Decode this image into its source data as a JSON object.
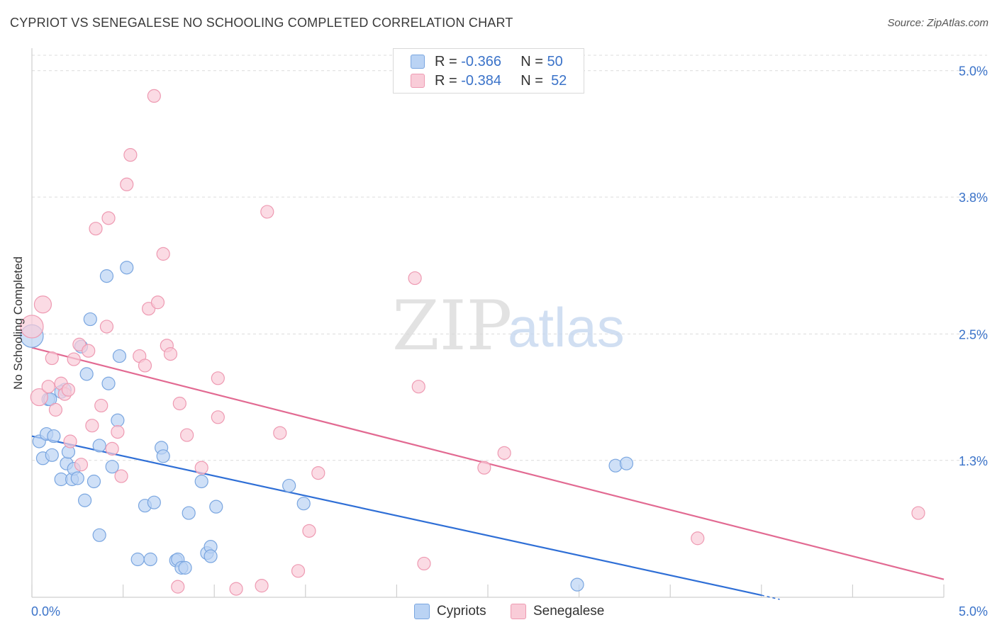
{
  "title": "CYPRIOT VS SENEGALESE NO SCHOOLING COMPLETED CORRELATION CHART",
  "source": "Source: ZipAtlas.com",
  "watermark": {
    "zip": "ZIP",
    "atlas": "atlas"
  },
  "legend": {
    "rows": [
      {
        "r_label": "R =",
        "r_value": "-0.366",
        "n_label": "N =",
        "n_value": "50"
      },
      {
        "r_label": "R =",
        "r_value": "-0.384",
        "n_label": "N =",
        "n_value": "52"
      }
    ]
  },
  "bottom_legend": [
    "Cypriots",
    "Senegalese"
  ],
  "chart_data": {
    "type": "scatter",
    "title": "CYPRIOT VS SENEGALESE NO SCHOOLING COMPLETED CORRELATION CHART",
    "xlabel": "",
    "ylabel": "No Schooling Completed",
    "xlim": [
      0,
      5
    ],
    "ylim": [
      0,
      5.2
    ],
    "x_tick_labels": [
      "0.0%",
      "5.0%"
    ],
    "y_ticks": [
      1.3,
      2.5,
      3.8,
      5.0
    ],
    "y_tick_labels": [
      "1.3%",
      "2.5%",
      "3.8%",
      "5.0%"
    ],
    "colors": {
      "blue": "#7aa6e0",
      "blue_fill": "#bad3f4",
      "blue_line": "#2f6fd6",
      "pink": "#ee9ab2",
      "pink_fill": "#f9ccd8",
      "pink_line": "#e26a92",
      "accent_text": "#3b73c9"
    },
    "series": [
      {
        "name": "Cypriots",
        "r": -0.366,
        "n": 50,
        "trend": {
          "x": [
            0,
            4.0
          ],
          "y": [
            1.53,
            0.02
          ],
          "dashed_to": [
            4.1,
            -0.02
          ]
        },
        "points": [
          [
            0.0,
            2.48,
            16
          ],
          [
            0.04,
            1.48,
            9
          ],
          [
            0.06,
            1.32,
            9
          ],
          [
            0.08,
            1.55,
            9
          ],
          [
            0.09,
            1.88,
            9
          ],
          [
            0.11,
            1.35,
            9
          ],
          [
            0.12,
            1.53,
            9
          ],
          [
            0.16,
            1.12,
            9
          ],
          [
            0.18,
            1.97,
            9
          ],
          [
            0.19,
            1.27,
            9
          ],
          [
            0.2,
            1.38,
            9
          ],
          [
            0.22,
            1.12,
            9
          ],
          [
            0.23,
            1.22,
            9
          ],
          [
            0.25,
            1.13,
            9
          ],
          [
            0.27,
            2.38,
            9
          ],
          [
            0.29,
            0.92,
            9
          ],
          [
            0.3,
            2.12,
            9
          ],
          [
            0.32,
            2.64,
            9
          ],
          [
            0.34,
            1.1,
            9
          ],
          [
            0.37,
            1.44,
            9
          ],
          [
            0.37,
            0.59,
            9
          ],
          [
            0.41,
            3.05,
            9
          ],
          [
            0.42,
            2.03,
            9
          ],
          [
            0.44,
            1.24,
            9
          ],
          [
            0.47,
            1.68,
            9
          ],
          [
            0.48,
            2.29,
            9
          ],
          [
            0.52,
            3.13,
            9
          ],
          [
            0.58,
            0.36,
            9
          ],
          [
            0.62,
            0.87,
            9
          ],
          [
            0.65,
            0.36,
            9
          ],
          [
            0.67,
            0.9,
            9
          ],
          [
            0.71,
            1.42,
            9
          ],
          [
            0.72,
            1.34,
            9
          ],
          [
            0.79,
            0.35,
            9
          ],
          [
            0.8,
            0.36,
            9
          ],
          [
            0.82,
            0.28,
            9
          ],
          [
            0.84,
            0.28,
            9
          ],
          [
            0.86,
            0.8,
            9
          ],
          [
            0.93,
            1.1,
            9
          ],
          [
            0.96,
            0.42,
            9
          ],
          [
            0.98,
            0.48,
            9
          ],
          [
            0.98,
            0.39,
            9
          ],
          [
            1.01,
            0.86,
            9
          ],
          [
            1.41,
            1.06,
            9
          ],
          [
            1.49,
            0.89,
            9
          ],
          [
            2.99,
            0.12,
            9
          ],
          [
            3.2,
            1.25,
            9
          ],
          [
            3.26,
            1.27,
            9
          ],
          [
            0.16,
            1.95,
            9
          ],
          [
            0.1,
            1.88,
            9
          ]
        ]
      },
      {
        "name": "Senegalese",
        "r": -0.384,
        "n": 52,
        "trend": {
          "x": [
            0,
            5.0
          ],
          "y": [
            2.37,
            0.17
          ]
        },
        "points": [
          [
            0.0,
            2.57,
            16
          ],
          [
            0.04,
            1.9,
            12
          ],
          [
            0.06,
            2.78,
            12
          ],
          [
            0.09,
            2.0,
            9
          ],
          [
            0.11,
            2.27,
            9
          ],
          [
            0.13,
            1.78,
            9
          ],
          [
            0.16,
            2.03,
            9
          ],
          [
            0.18,
            1.93,
            9
          ],
          [
            0.21,
            1.48,
            9
          ],
          [
            0.23,
            2.26,
            9
          ],
          [
            0.26,
            2.4,
            9
          ],
          [
            0.27,
            1.26,
            9
          ],
          [
            0.31,
            2.34,
            9
          ],
          [
            0.33,
            1.63,
            9
          ],
          [
            0.35,
            3.5,
            9
          ],
          [
            0.38,
            1.82,
            9
          ],
          [
            0.41,
            2.57,
            9
          ],
          [
            0.42,
            3.6,
            9
          ],
          [
            0.44,
            1.41,
            9
          ],
          [
            0.47,
            1.57,
            9
          ],
          [
            0.49,
            1.15,
            9
          ],
          [
            0.52,
            3.92,
            9
          ],
          [
            0.54,
            4.2,
            9
          ],
          [
            0.59,
            2.29,
            9
          ],
          [
            0.62,
            2.2,
            9
          ],
          [
            0.64,
            2.74,
            9
          ],
          [
            0.67,
            4.76,
            9
          ],
          [
            0.69,
            2.8,
            9
          ],
          [
            0.72,
            3.26,
            9
          ],
          [
            0.74,
            2.39,
            9
          ],
          [
            0.76,
            2.31,
            9
          ],
          [
            0.8,
            0.1,
            9
          ],
          [
            0.81,
            1.84,
            9
          ],
          [
            0.85,
            1.54,
            9
          ],
          [
            0.93,
            1.23,
            9
          ],
          [
            1.02,
            2.08,
            9
          ],
          [
            1.02,
            1.71,
            9
          ],
          [
            1.12,
            0.08,
            9
          ],
          [
            1.26,
            0.11,
            9
          ],
          [
            1.29,
            3.66,
            9
          ],
          [
            1.36,
            1.56,
            9
          ],
          [
            1.46,
            0.25,
            9
          ],
          [
            1.52,
            0.63,
            9
          ],
          [
            1.57,
            1.18,
            9
          ],
          [
            2.1,
            3.03,
            9
          ],
          [
            2.12,
            2.0,
            9
          ],
          [
            2.15,
            0.32,
            9
          ],
          [
            2.48,
            1.23,
            9
          ],
          [
            2.59,
            1.37,
            9
          ],
          [
            3.65,
            0.56,
            9
          ],
          [
            4.86,
            0.8,
            9
          ],
          [
            0.2,
            1.97,
            9
          ]
        ]
      }
    ]
  }
}
